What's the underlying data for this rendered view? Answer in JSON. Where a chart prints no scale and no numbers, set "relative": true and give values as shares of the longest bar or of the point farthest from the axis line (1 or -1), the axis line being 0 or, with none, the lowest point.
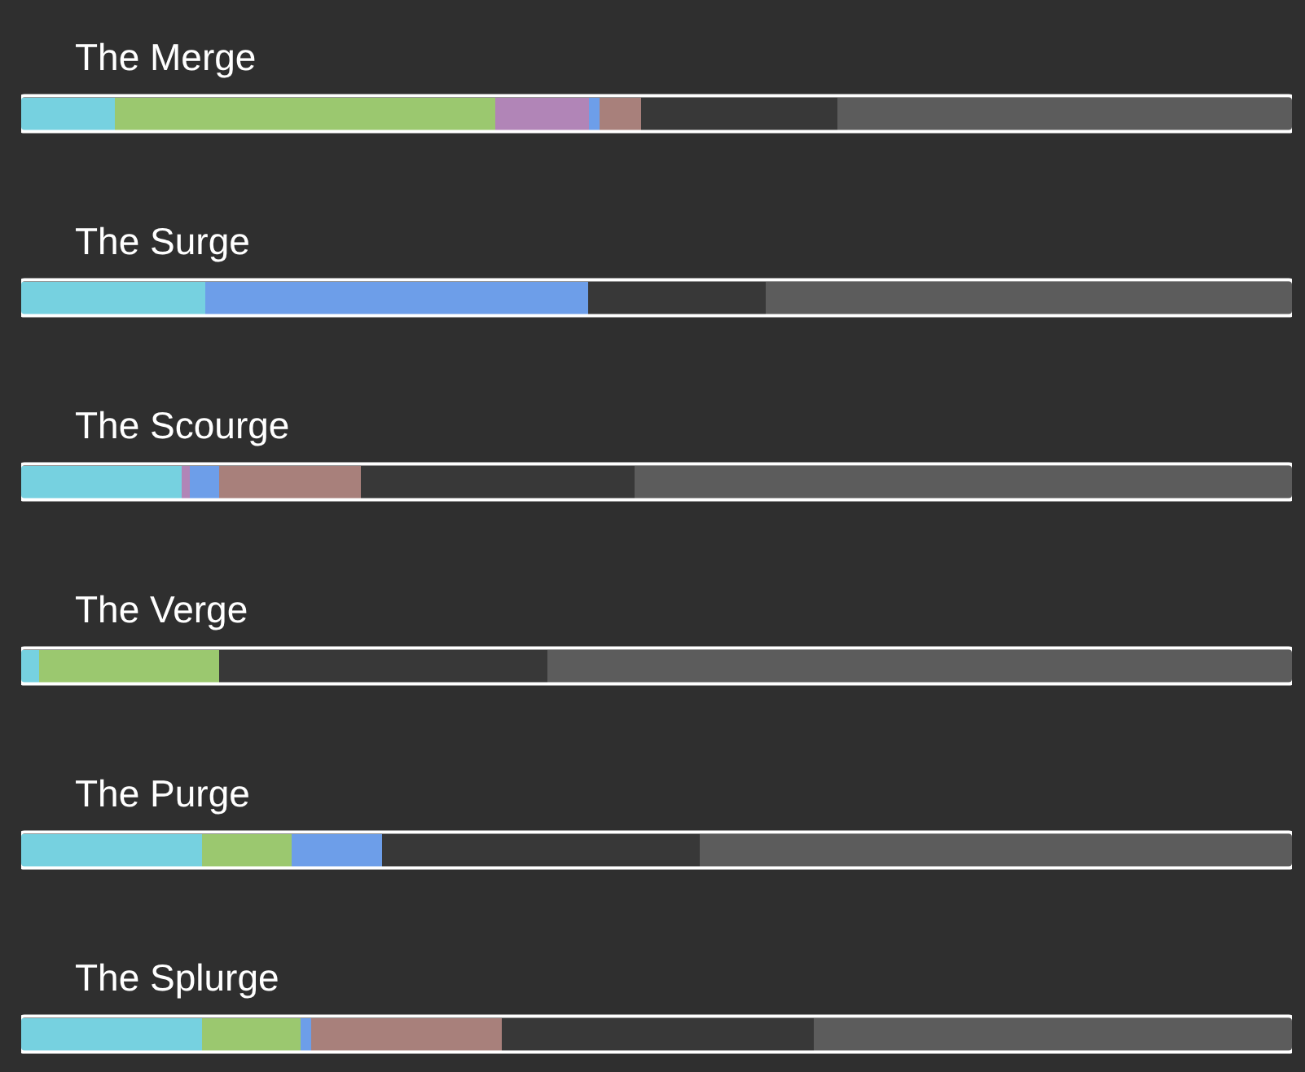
{
  "chart_data": {
    "type": "bar",
    "orientation": "horizontal",
    "stacked": true,
    "relative": true,
    "categories": [
      "The Merge",
      "The Surge",
      "The Scourge",
      "The Verge",
      "The Purge",
      "The Splurge"
    ],
    "series": [
      {
        "color": "#76d1e0",
        "values": [
          0.074,
          0.145,
          0.126,
          0.014,
          0.142,
          0.142
        ]
      },
      {
        "color": "#9bc86f",
        "values": [
          0.299,
          null,
          null,
          0.142,
          0.071,
          0.078
        ]
      },
      {
        "color": "#b185b7",
        "values": [
          0.074,
          null,
          0.007,
          null,
          null,
          null
        ]
      },
      {
        "color": "#6d9ee9",
        "values": [
          0.008,
          0.301,
          0.023,
          null,
          0.071,
          0.008
        ]
      },
      {
        "color": "#a8807b",
        "values": [
          0.033,
          null,
          0.111,
          null,
          null,
          0.15
        ]
      },
      {
        "color": "#383838",
        "values": [
          0.154,
          0.14,
          0.216,
          0.258,
          0.25,
          0.246
        ]
      },
      {
        "color": "#5c5c5c",
        "values": [
          0.358,
          0.414,
          0.517,
          0.586,
          0.466,
          0.376
        ]
      }
    ]
  }
}
